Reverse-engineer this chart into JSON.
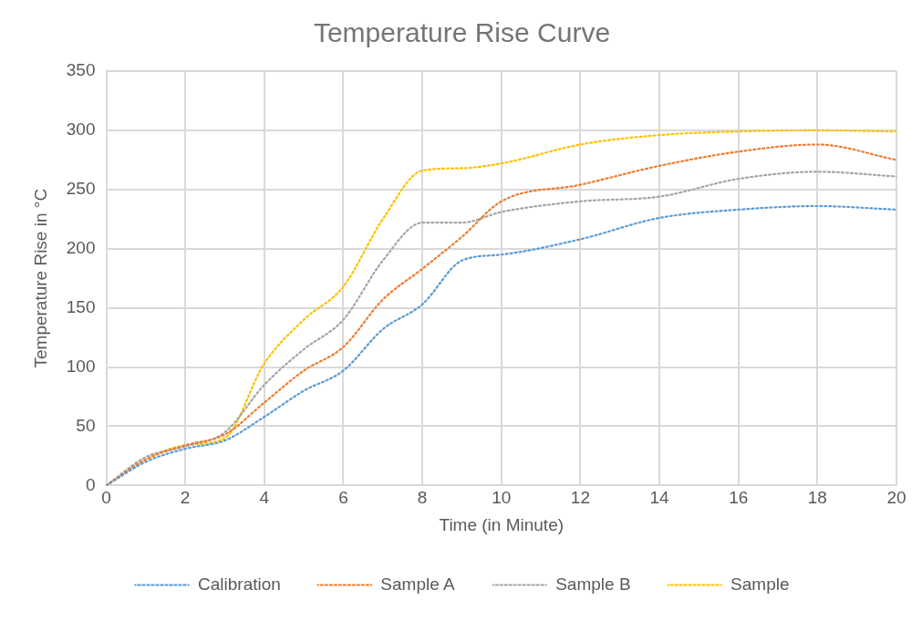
{
  "chart_data": {
    "type": "line",
    "title": "Temperature Rise Curve",
    "xlabel": "Time (in Minute)",
    "ylabel": "Temperature Rise in °C",
    "x": [
      0,
      1,
      2,
      3,
      4,
      5,
      6,
      7,
      8,
      9,
      10,
      12,
      14,
      16,
      18,
      20
    ],
    "series": [
      {
        "name": "Calibration",
        "color": "#5b9bd5",
        "values": [
          0,
          20,
          31,
          38,
          58,
          80,
          97,
          132,
          153,
          190,
          195,
          208,
          226,
          233,
          236,
          233
        ]
      },
      {
        "name": "Sample A",
        "color": "#ed7d31",
        "values": [
          0,
          22,
          34,
          43,
          70,
          97,
          117,
          157,
          183,
          210,
          240,
          254,
          270,
          282,
          288,
          275
        ]
      },
      {
        "name": "Sample B",
        "color": "#a5a5a5",
        "values": [
          0,
          24,
          33,
          45,
          85,
          115,
          140,
          190,
          222,
          222,
          231,
          240,
          244,
          259,
          265,
          261
        ]
      },
      {
        "name": "Sample",
        "color": "#ffc000",
        "values": [
          0,
          22,
          34,
          40,
          103,
          140,
          168,
          225,
          266,
          268,
          272,
          288,
          296,
          299,
          300,
          299
        ]
      }
    ],
    "xlim": [
      0,
      20
    ],
    "xticks": [
      0,
      2,
      4,
      6,
      8,
      10,
      12,
      14,
      16,
      18,
      20
    ],
    "ylim": [
      0,
      350
    ],
    "yticks": [
      0,
      50,
      100,
      150,
      200,
      250,
      300,
      350
    ],
    "grid": true,
    "legend": "bottom",
    "marker": "none",
    "line_style": "dotted"
  }
}
